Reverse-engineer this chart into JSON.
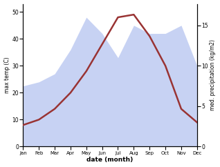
{
  "months": [
    "Jan",
    "Feb",
    "Mar",
    "Apr",
    "May",
    "Jun",
    "Jul",
    "Aug",
    "Sep",
    "Oct",
    "Nov",
    "Dec"
  ],
  "month_indices": [
    1,
    2,
    3,
    4,
    5,
    6,
    7,
    8,
    9,
    10,
    11,
    12
  ],
  "temperature": [
    8,
    10,
    14,
    20,
    28,
    38,
    48,
    49,
    41,
    30,
    14,
    9
  ],
  "precipitation": [
    7.5,
    8,
    9,
    12,
    16,
    14,
    11,
    15,
    14,
    14,
    15,
    10
  ],
  "temp_color": "#993333",
  "precip_color": "#aabbee",
  "precip_alpha": 0.65,
  "xlabel": "date (month)",
  "ylabel_left": "max temp (C)",
  "ylabel_right": "med. precipitation (kg/m2)",
  "ylim_left": [
    0,
    53
  ],
  "ylim_right": [
    0,
    17.67
  ],
  "yticks_left": [
    0,
    10,
    20,
    30,
    40,
    50
  ],
  "yticks_right": [
    0,
    5,
    10,
    15
  ],
  "bg_color": "#ffffff",
  "line_width": 1.8
}
